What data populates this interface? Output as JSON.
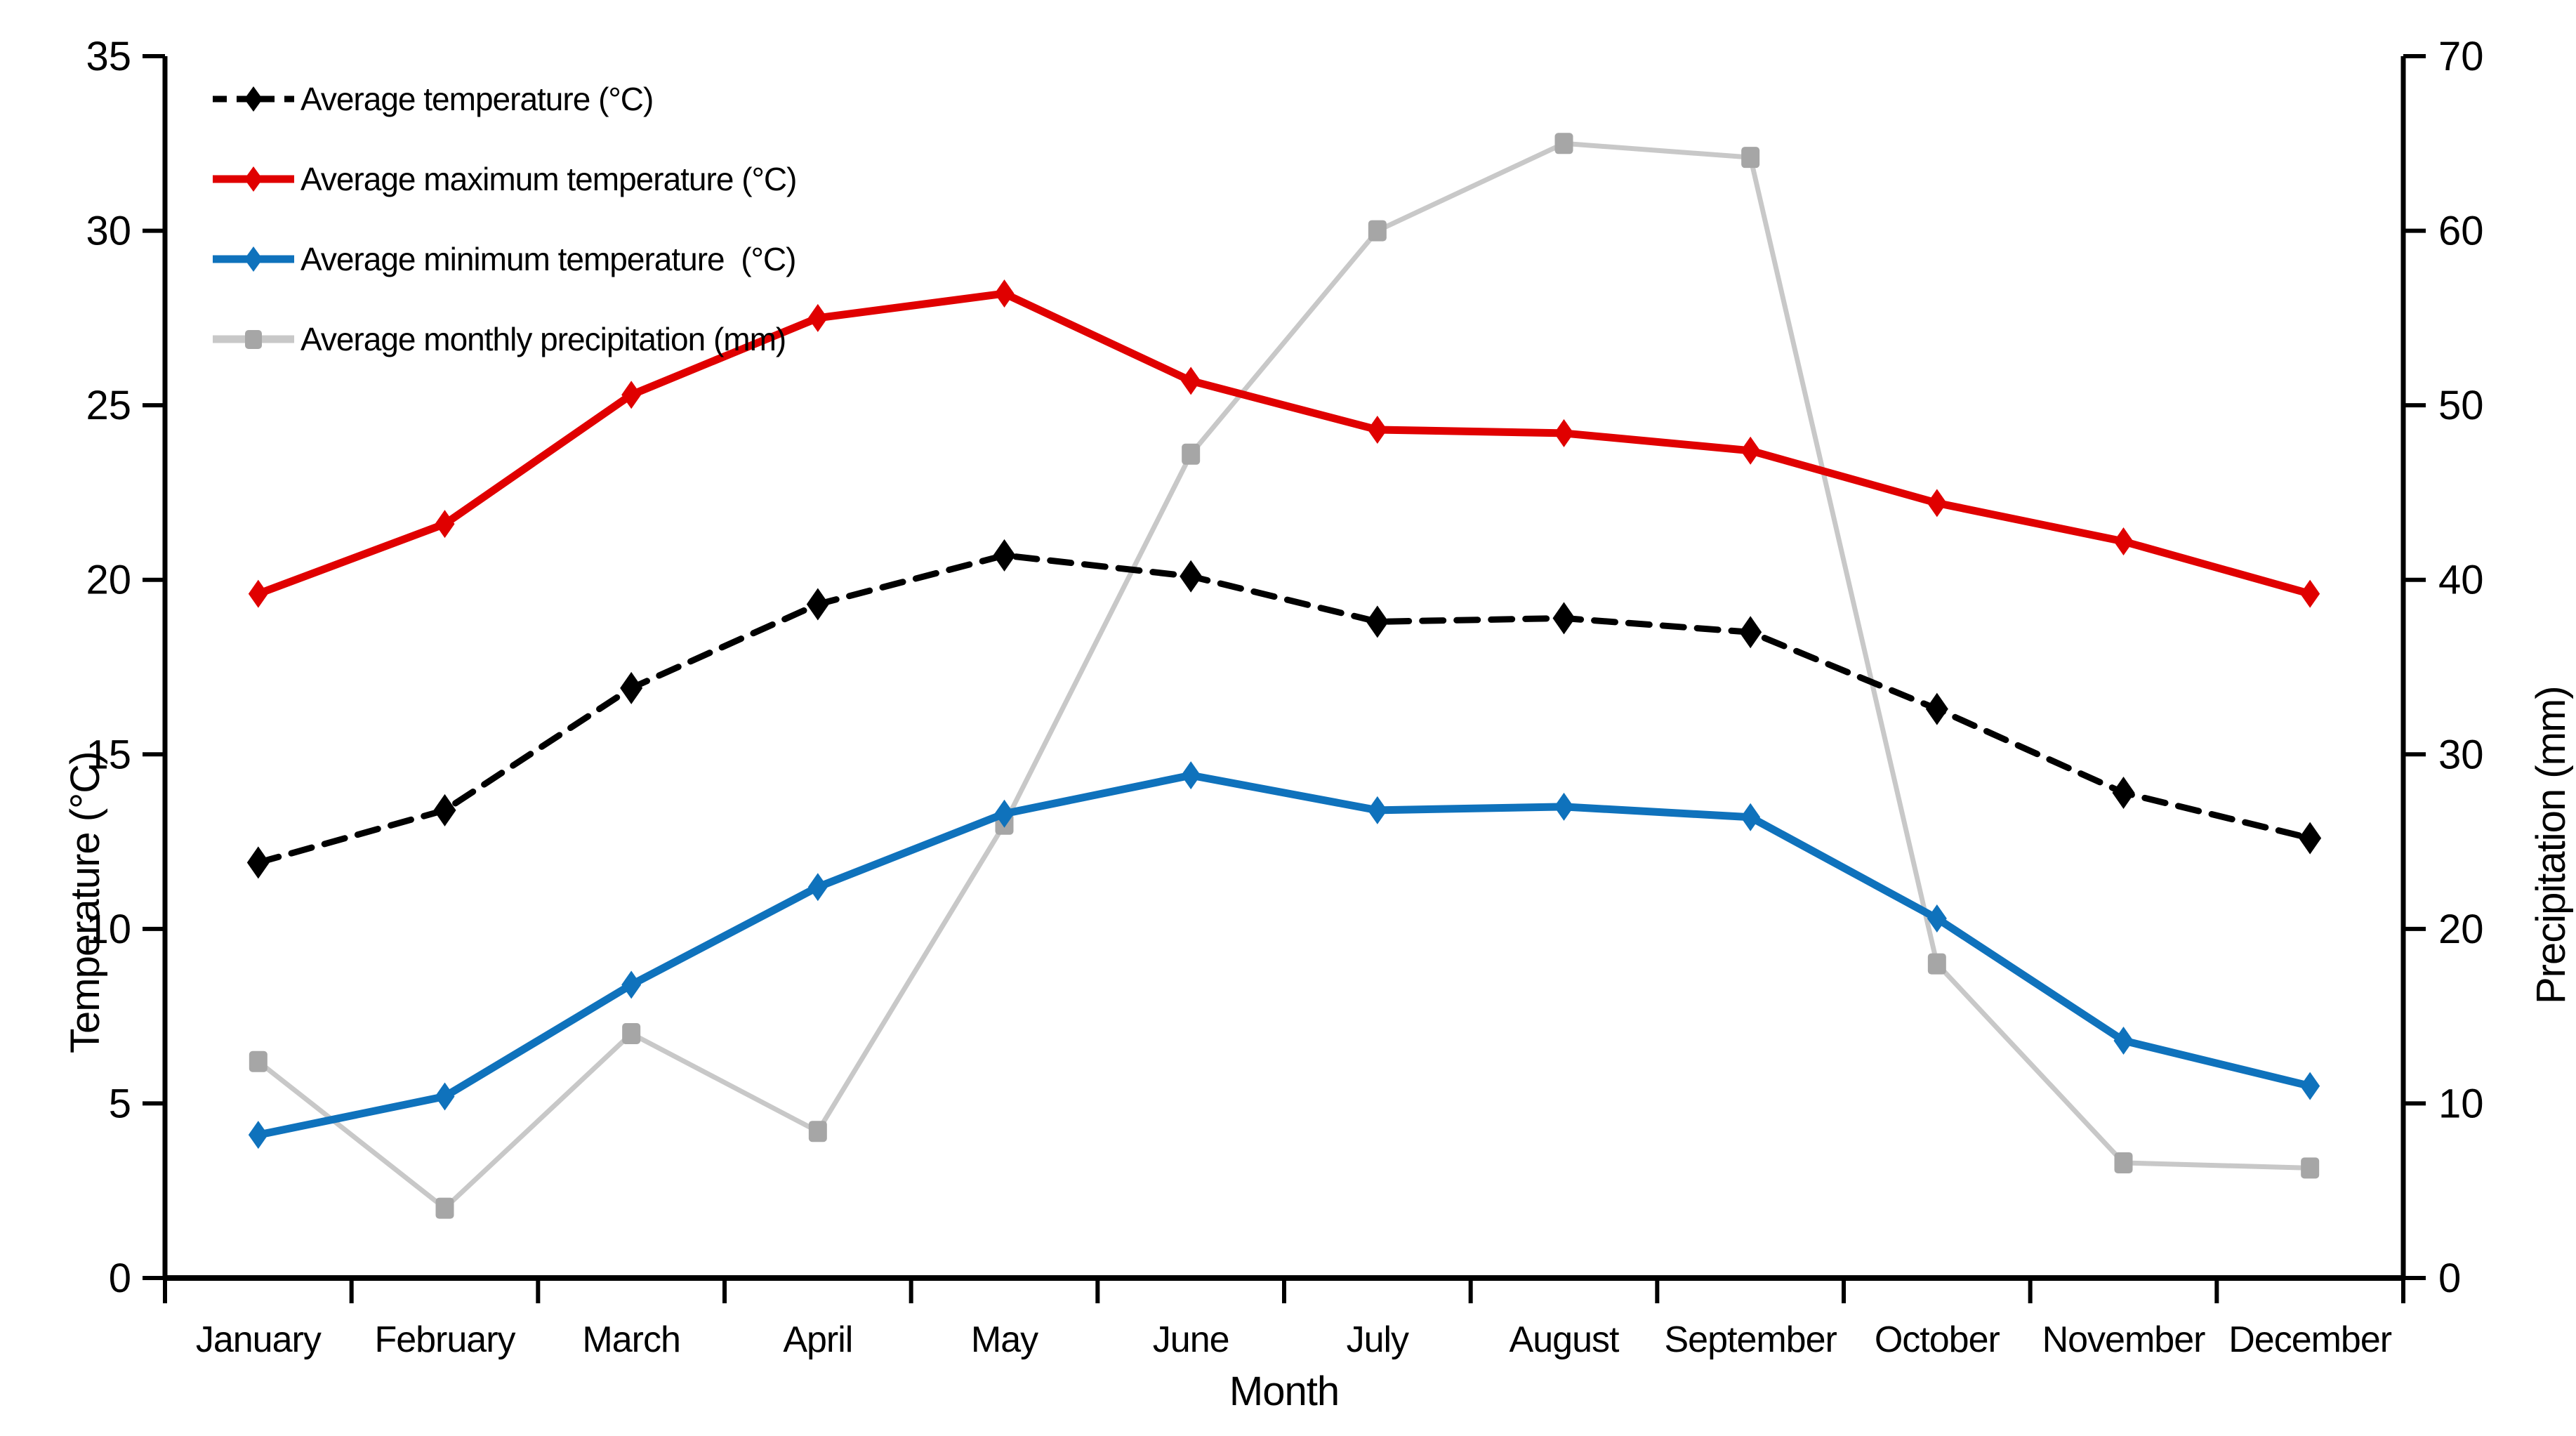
{
  "chart_data": {
    "type": "line",
    "title": "",
    "grid": false,
    "background_color": "#FFFFFF",
    "axis_color": "#000000",
    "legend_position": "top-left-inside",
    "categories": [
      "January",
      "February",
      "March",
      "April",
      "May",
      "June",
      "July",
      "August",
      "September",
      "October",
      "November",
      "December"
    ],
    "x_axis": {
      "title": "Month",
      "tick_labels": [
        "January",
        "February",
        "March",
        "April",
        "May",
        "June",
        "July",
        "August",
        "September",
        "October",
        "November",
        "December"
      ]
    },
    "y_axis_left": {
      "title": "Temperature (°C)",
      "min": 0,
      "max": 35,
      "step": 5,
      "tick_labels": [
        "0",
        "5",
        "10",
        "15",
        "20",
        "25",
        "30",
        "35"
      ]
    },
    "y_axis_right": {
      "title": "Precipitation (mm)",
      "min": 0,
      "max": 70,
      "step": 10,
      "tick_labels": [
        "0",
        "10",
        "20",
        "30",
        "40",
        "50",
        "60",
        "70"
      ]
    },
    "series": [
      {
        "name": "Average temperature (°C)",
        "axis": "left",
        "color": "#000000",
        "line_style": "dashed",
        "marker": "diamond",
        "values": [
          11.9,
          13.4,
          16.9,
          19.3,
          20.7,
          20.1,
          18.8,
          18.9,
          18.5,
          16.3,
          13.9,
          12.6
        ]
      },
      {
        "name": "Average maximum temperature (°C)",
        "axis": "left",
        "color": "#E00000",
        "line_style": "solid",
        "marker": "diamond",
        "values": [
          19.6,
          21.6,
          25.3,
          27.5,
          28.2,
          25.7,
          24.3,
          24.2,
          23.7,
          22.2,
          21.1,
          19.6
        ]
      },
      {
        "name": "Average minimum temperature  (°C)",
        "axis": "left",
        "color": "#0F72BC",
        "line_style": "solid",
        "marker": "diamond",
        "values": [
          4.1,
          5.2,
          8.4,
          11.2,
          13.3,
          14.4,
          13.4,
          13.5,
          13.2,
          10.3,
          6.8,
          5.5
        ]
      },
      {
        "name": "Average monthly precipitation (mm)",
        "axis": "right",
        "color": "#C8C8C8",
        "marker_color": "#A6A6A6",
        "line_style": "solid",
        "marker": "square",
        "values": [
          12.4,
          4.0,
          14.0,
          8.4,
          26.0,
          47.2,
          60.0,
          65.0,
          64.2,
          18.0,
          6.6,
          6.3
        ]
      }
    ]
  }
}
